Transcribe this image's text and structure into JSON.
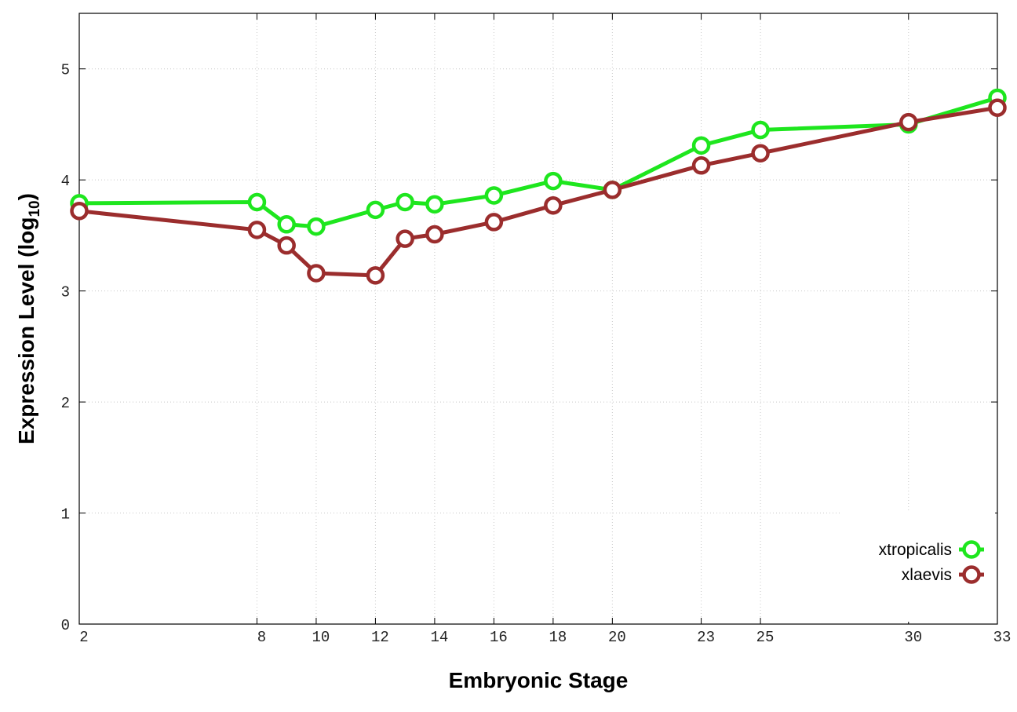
{
  "chart_data": {
    "type": "line",
    "title": "",
    "xlabel": "Embryonic Stage",
    "ylabel": {
      "main": "Expression Level (log",
      "subscript": "10",
      "close": ")"
    },
    "x": [
      2,
      8,
      9,
      10,
      12,
      13,
      14,
      16,
      18,
      20,
      23,
      25,
      30,
      33
    ],
    "x_tick_labels": [
      "2",
      "8",
      "10",
      "12",
      "14",
      "16",
      "18",
      "20",
      "23",
      "25",
      "30",
      "33"
    ],
    "x_tick_values": [
      2,
      8,
      10,
      12,
      14,
      16,
      18,
      20,
      23,
      25,
      30,
      33
    ],
    "y_ticks": [
      0,
      1,
      2,
      3,
      4,
      5
    ],
    "xlim": [
      2,
      33
    ],
    "ylim": [
      0,
      5.5
    ],
    "grid": true,
    "legend_position": "bottom-right",
    "series": [
      {
        "name": "xtropicalis",
        "color": "#1ee61e",
        "values": [
          3.79,
          3.8,
          3.6,
          3.58,
          3.73,
          3.8,
          3.78,
          3.86,
          3.99,
          3.91,
          4.31,
          4.45,
          4.5,
          4.74
        ]
      },
      {
        "name": "xlaevis",
        "color": "#9b2d2d",
        "values": [
          3.72,
          3.55,
          3.41,
          3.16,
          3.14,
          3.47,
          3.51,
          3.62,
          3.77,
          3.91,
          4.13,
          4.24,
          4.52,
          4.65
        ]
      }
    ]
  }
}
